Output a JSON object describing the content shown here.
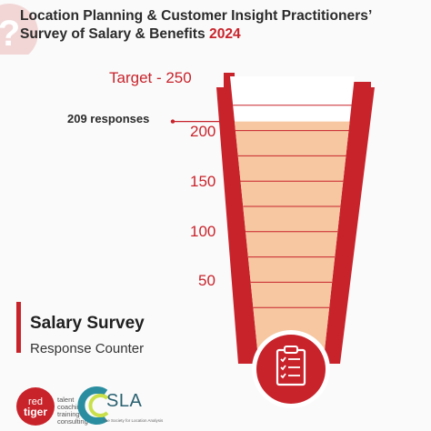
{
  "title": {
    "line1": "Location Planning & Customer Insight Practitioners’",
    "line2": "Survey of Salary & Benefits",
    "year": "2024"
  },
  "gauge": {
    "target_label": "Target - 250",
    "target": 250,
    "current": 209,
    "responses_label": "209 responses",
    "ticks": [
      "200",
      "150",
      "100",
      "50"
    ]
  },
  "survey": {
    "title": "Salary Survey",
    "subtitle": "Response Counter"
  },
  "logos": {
    "redtiger_line1": "red",
    "redtiger_line2": "tiger",
    "redtiger_services": [
      "talent",
      "coaching",
      "training",
      "consulting"
    ],
    "sla_word": "SLA",
    "sla_tagline": "The Society for Location Analysis"
  },
  "icons": {
    "corner": "question-mark-icon",
    "badge": "clipboard-checklist-icon"
  },
  "colors": {
    "accent": "#c8232b",
    "fill": "#f6c7a1",
    "text": "#2b2b2b",
    "sla": "#2a6171"
  }
}
